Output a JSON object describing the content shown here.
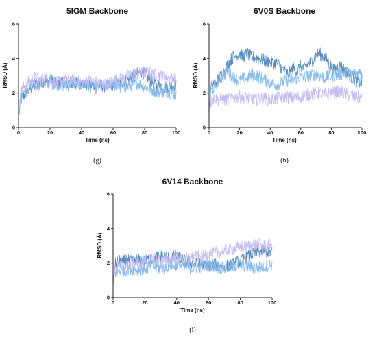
{
  "colors": {
    "series_dark": "#4f87bd",
    "series_mid": "#7fb6ea",
    "series_light": "#c2b9f0"
  },
  "chart_data": [
    {
      "type": "line",
      "title": "5IGM Backbone",
      "caption": "(g)",
      "xlabel": "Time (ns)",
      "ylabel": "RMSD (Å)",
      "xlim": [
        0,
        100
      ],
      "ylim": [
        0,
        6
      ],
      "xticks": [
        0,
        20,
        40,
        60,
        80,
        100
      ],
      "yticks": [
        0,
        2,
        4,
        6
      ],
      "grid": false,
      "series": [
        {
          "color": "#4f87bd",
          "x": [
            0,
            1,
            2,
            4,
            6,
            8,
            10,
            12,
            14,
            16,
            18,
            20,
            25,
            30,
            35,
            40,
            45,
            50,
            55,
            60,
            65,
            70,
            72,
            75,
            78,
            80,
            82,
            85,
            88,
            90,
            92,
            95,
            98,
            100
          ],
          "y": [
            0.5,
            1.3,
            1.7,
            1.9,
            2.1,
            2.3,
            2.4,
            2.6,
            2.5,
            2.7,
            2.6,
            2.8,
            2.6,
            2.7,
            2.5,
            2.6,
            2.4,
            2.5,
            2.4,
            2.5,
            2.6,
            2.8,
            3.0,
            3.1,
            3.2,
            3.1,
            2.9,
            2.6,
            2.4,
            2.5,
            2.3,
            2.4,
            2.5,
            2.4
          ]
        },
        {
          "color": "#7fb6ea",
          "x": [
            0,
            1,
            2,
            4,
            6,
            8,
            10,
            12,
            14,
            16,
            18,
            20,
            25,
            30,
            35,
            40,
            45,
            50,
            55,
            60,
            65,
            70,
            75,
            80,
            85,
            90,
            95,
            100
          ],
          "y": [
            0.6,
            1.6,
            2.0,
            2.1,
            2.2,
            2.4,
            2.5,
            2.4,
            2.6,
            2.5,
            2.7,
            2.6,
            2.5,
            2.4,
            2.6,
            2.5,
            2.4,
            2.3,
            2.4,
            2.5,
            2.3,
            2.4,
            2.6,
            2.4,
            2.2,
            2.0,
            2.1,
            1.9
          ]
        },
        {
          "color": "#c2b9f0",
          "x": [
            0,
            1,
            2,
            4,
            6,
            8,
            10,
            12,
            14,
            16,
            18,
            20,
            25,
            30,
            35,
            40,
            45,
            50,
            55,
            60,
            65,
            70,
            75,
            80,
            85,
            90,
            95,
            100
          ],
          "y": [
            0.7,
            1.8,
            2.2,
            2.4,
            2.6,
            2.7,
            2.9,
            2.8,
            2.7,
            2.9,
            2.8,
            2.7,
            2.6,
            2.8,
            2.7,
            2.6,
            2.7,
            2.6,
            2.5,
            2.7,
            2.8,
            3.0,
            3.1,
            3.2,
            3.1,
            3.0,
            2.9,
            2.8
          ]
        }
      ]
    },
    {
      "type": "line",
      "title": "6V0S Backbone",
      "caption": "(h)",
      "xlabel": "Time (ns)",
      "ylabel": "RMSD (Å)",
      "xlim": [
        0,
        100
      ],
      "ylim": [
        0,
        6
      ],
      "xticks": [
        0,
        20,
        40,
        60,
        80,
        100
      ],
      "yticks": [
        0,
        2,
        4,
        6
      ],
      "grid": false,
      "series": [
        {
          "color": "#4f87bd",
          "x": [
            0,
            1,
            2,
            4,
            6,
            8,
            10,
            12,
            14,
            16,
            18,
            20,
            22,
            25,
            28,
            30,
            35,
            40,
            45,
            48,
            50,
            52,
            55,
            58,
            60,
            62,
            65,
            68,
            70,
            72,
            75,
            78,
            80,
            82,
            85,
            88,
            90,
            92,
            95,
            98,
            100
          ],
          "y": [
            1.0,
            2.2,
            2.5,
            2.6,
            2.8,
            3.0,
            3.3,
            3.6,
            3.9,
            4.1,
            4.2,
            4.3,
            4.1,
            4.3,
            4.0,
            4.1,
            3.9,
            3.8,
            3.7,
            3.4,
            3.2,
            3.1,
            3.4,
            3.3,
            3.6,
            3.4,
            3.7,
            3.9,
            4.2,
            4.3,
            4.1,
            3.8,
            3.5,
            3.3,
            3.6,
            3.4,
            3.2,
            3.0,
            2.8,
            2.6,
            2.7
          ]
        },
        {
          "color": "#7fb6ea",
          "x": [
            0,
            1,
            2,
            4,
            6,
            8,
            10,
            12,
            14,
            16,
            18,
            20,
            25,
            30,
            35,
            40,
            45,
            50,
            55,
            60,
            65,
            70,
            75,
            80,
            85,
            90,
            95,
            100
          ],
          "y": [
            1.0,
            2.0,
            2.2,
            2.4,
            2.7,
            2.9,
            3.1,
            3.3,
            3.1,
            3.0,
            2.8,
            2.7,
            2.9,
            3.1,
            2.8,
            2.6,
            2.5,
            2.7,
            2.8,
            2.9,
            3.0,
            3.1,
            2.9,
            3.0,
            3.1,
            3.2,
            3.1,
            3.2
          ]
        },
        {
          "color": "#c2b9f0",
          "x": [
            0,
            1,
            2,
            4,
            6,
            8,
            10,
            15,
            20,
            25,
            30,
            35,
            40,
            45,
            50,
            55,
            60,
            65,
            70,
            75,
            80,
            85,
            90,
            95,
            100
          ],
          "y": [
            0.8,
            1.5,
            1.6,
            1.7,
            1.6,
            1.7,
            1.6,
            1.7,
            1.8,
            1.7,
            1.6,
            1.7,
            1.6,
            1.7,
            1.8,
            1.7,
            1.8,
            1.9,
            2.0,
            1.9,
            2.0,
            2.1,
            1.9,
            1.8,
            1.7
          ]
        }
      ]
    },
    {
      "type": "line",
      "title": "6V14 Backbone",
      "caption": "(i)",
      "xlabel": "Time (ns)",
      "ylabel": "RMSD (Å)",
      "xlim": [
        0,
        100
      ],
      "ylim": [
        0,
        6
      ],
      "xticks": [
        0,
        20,
        40,
        60,
        80,
        100
      ],
      "yticks": [
        0,
        2,
        4,
        6
      ],
      "grid": false,
      "series": [
        {
          "color": "#4f87bd",
          "x": [
            0,
            1,
            2,
            4,
            6,
            8,
            10,
            15,
            20,
            25,
            30,
            35,
            40,
            45,
            50,
            55,
            60,
            65,
            70,
            75,
            80,
            85,
            90,
            95,
            100
          ],
          "y": [
            0.8,
            1.8,
            2.0,
            2.1,
            2.0,
            2.2,
            2.1,
            2.2,
            2.1,
            2.3,
            2.4,
            2.3,
            2.4,
            2.1,
            2.0,
            1.9,
            1.8,
            1.9,
            1.8,
            1.9,
            2.1,
            2.4,
            2.6,
            2.7,
            2.6
          ]
        },
        {
          "color": "#7fb6ea",
          "x": [
            0,
            1,
            2,
            4,
            6,
            8,
            10,
            15,
            20,
            25,
            30,
            35,
            40,
            45,
            50,
            55,
            60,
            65,
            70,
            75,
            80,
            85,
            90,
            95,
            100
          ],
          "y": [
            0.7,
            1.4,
            1.5,
            1.6,
            1.5,
            1.6,
            1.7,
            1.6,
            1.7,
            1.8,
            1.7,
            1.8,
            1.9,
            1.8,
            1.7,
            1.8,
            1.9,
            1.8,
            1.7,
            1.8,
            1.9,
            1.8,
            1.7,
            1.8,
            1.9
          ]
        },
        {
          "color": "#c2b9f0",
          "x": [
            0,
            1,
            2,
            4,
            6,
            8,
            10,
            15,
            20,
            25,
            30,
            35,
            40,
            45,
            50,
            55,
            60,
            65,
            70,
            75,
            80,
            85,
            90,
            95,
            100
          ],
          "y": [
            0.8,
            1.5,
            1.7,
            1.8,
            1.9,
            1.8,
            1.9,
            2.0,
            2.1,
            2.2,
            2.1,
            2.2,
            2.3,
            2.2,
            2.3,
            2.4,
            2.5,
            2.6,
            2.7,
            2.8,
            2.9,
            3.0,
            3.1,
            3.0,
            3.1
          ]
        }
      ]
    }
  ]
}
